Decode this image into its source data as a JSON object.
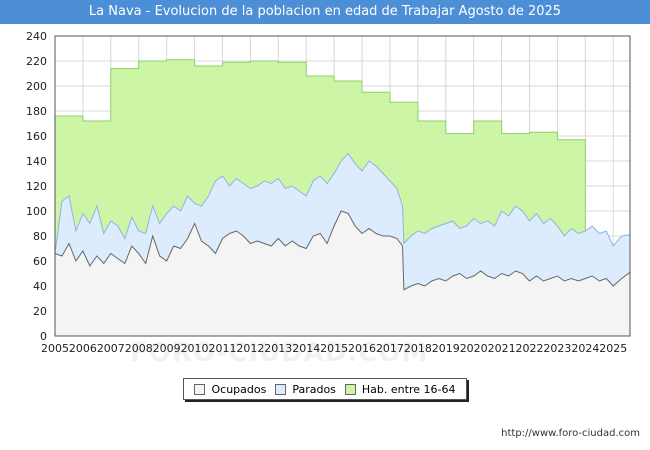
{
  "chart_data": {
    "type": "area",
    "title": "La Nava - Evolucion de la poblacion en edad de Trabajar Agosto de 2025",
    "xlabel": "",
    "ylabel": "",
    "ylim": [
      0,
      240
    ],
    "xlim": [
      2005,
      2025.6
    ],
    "yticks": [
      0,
      20,
      40,
      60,
      80,
      100,
      120,
      140,
      160,
      180,
      200,
      220,
      240
    ],
    "xticks": [
      "2005",
      "2006",
      "2007",
      "2008",
      "2009",
      "2010",
      "2011",
      "2012",
      "2013",
      "2014",
      "2015",
      "2016",
      "2017",
      "2018",
      "2019",
      "2020",
      "2021",
      "2022",
      "2023",
      "2024",
      "2025"
    ],
    "grid": true,
    "legend_position": "bottom-center",
    "series": [
      {
        "name": "Hab. entre 16-64",
        "color": "#ccf5a6",
        "line": "#8fd16a",
        "x": [
          2005,
          2006,
          2007,
          2008,
          2009,
          2010,
          2011,
          2012,
          2013,
          2014,
          2015,
          2016,
          2017,
          2018,
          2019,
          2020,
          2021,
          2022,
          2023,
          2024
        ],
        "values": [
          176,
          172,
          214,
          220,
          221,
          216,
          219,
          220,
          219,
          208,
          204,
          195,
          187,
          172,
          162,
          172,
          162,
          163,
          157,
          75
        ]
      },
      {
        "name": "Parados",
        "color": "#dcecfc",
        "line": "#8fb4e0",
        "x": [
          2005.0,
          2005.25,
          2005.5,
          2005.75,
          2006.0,
          2006.25,
          2006.5,
          2006.75,
          2007.0,
          2007.25,
          2007.5,
          2007.75,
          2008.0,
          2008.25,
          2008.5,
          2008.75,
          2009.0,
          2009.25,
          2009.5,
          2009.75,
          2010.0,
          2010.25,
          2010.5,
          2010.75,
          2011.0,
          2011.25,
          2011.5,
          2011.75,
          2012.0,
          2012.25,
          2012.5,
          2012.75,
          2013.0,
          2013.25,
          2013.5,
          2013.75,
          2014.0,
          2014.25,
          2014.5,
          2014.75,
          2015.0,
          2015.25,
          2015.5,
          2015.75,
          2016.0,
          2016.25,
          2016.5,
          2016.75,
          2017.0,
          2017.25,
          2017.45,
          2017.5,
          2017.75,
          2018.0,
          2018.25,
          2018.5,
          2018.75,
          2019.0,
          2019.25,
          2019.5,
          2019.75,
          2020.0,
          2020.25,
          2020.5,
          2020.75,
          2021.0,
          2021.25,
          2021.5,
          2021.75,
          2022.0,
          2022.25,
          2022.5,
          2022.75,
          2023.0,
          2023.25,
          2023.5,
          2023.75,
          2024.0,
          2024.25,
          2024.5,
          2024.75,
          2025.0,
          2025.3,
          2025.6
        ],
        "values": [
          66,
          108,
          112,
          84,
          98,
          90,
          104,
          82,
          92,
          88,
          78,
          95,
          84,
          82,
          104,
          90,
          98,
          104,
          100,
          112,
          106,
          104,
          112,
          124,
          128,
          120,
          126,
          122,
          118,
          120,
          124,
          122,
          126,
          118,
          120,
          116,
          112,
          124,
          128,
          122,
          130,
          140,
          146,
          138,
          132,
          140,
          136,
          130,
          124,
          118,
          104,
          74,
          80,
          84,
          82,
          86,
          88,
          90,
          92,
          86,
          88,
          94,
          90,
          92,
          88,
          100,
          96,
          104,
          100,
          92,
          98,
          90,
          94,
          88,
          80,
          86,
          82,
          84,
          88,
          82,
          84,
          72,
          80,
          81
        ]
      },
      {
        "name": "Ocupados",
        "color": "#f4f4f4",
        "line": "#666666",
        "x": [
          2005.0,
          2005.25,
          2005.5,
          2005.75,
          2006.0,
          2006.25,
          2006.5,
          2006.75,
          2007.0,
          2007.25,
          2007.5,
          2007.75,
          2008.0,
          2008.25,
          2008.5,
          2008.75,
          2009.0,
          2009.25,
          2009.5,
          2009.75,
          2010.0,
          2010.25,
          2010.5,
          2010.75,
          2011.0,
          2011.25,
          2011.5,
          2011.75,
          2012.0,
          2012.25,
          2012.5,
          2012.75,
          2013.0,
          2013.25,
          2013.5,
          2013.75,
          2014.0,
          2014.25,
          2014.5,
          2014.75,
          2015.0,
          2015.25,
          2015.5,
          2015.75,
          2016.0,
          2016.25,
          2016.5,
          2016.75,
          2017.0,
          2017.25,
          2017.45,
          2017.5,
          2017.75,
          2018.0,
          2018.25,
          2018.5,
          2018.75,
          2019.0,
          2019.25,
          2019.5,
          2019.75,
          2020.0,
          2020.25,
          2020.5,
          2020.75,
          2021.0,
          2021.25,
          2021.5,
          2021.75,
          2022.0,
          2022.25,
          2022.5,
          2022.75,
          2023.0,
          2023.25,
          2023.5,
          2023.75,
          2024.0,
          2024.25,
          2024.5,
          2024.75,
          2025.0,
          2025.3,
          2025.6
        ],
        "values": [
          66,
          64,
          74,
          60,
          68,
          56,
          64,
          58,
          66,
          62,
          58,
          72,
          66,
          58,
          80,
          64,
          60,
          72,
          70,
          78,
          90,
          76,
          72,
          66,
          78,
          82,
          84,
          80,
          74,
          76,
          74,
          72,
          78,
          72,
          76,
          72,
          70,
          80,
          82,
          74,
          88,
          100,
          98,
          88,
          82,
          86,
          82,
          80,
          80,
          78,
          72,
          37,
          40,
          42,
          40,
          44,
          46,
          44,
          48,
          50,
          46,
          48,
          52,
          48,
          46,
          50,
          48,
          52,
          50,
          44,
          48,
          44,
          46,
          48,
          44,
          46,
          44,
          46,
          48,
          44,
          46,
          40,
          46,
          51
        ]
      }
    ]
  },
  "page": {
    "legend": [
      "Ocupados",
      "Parados",
      "Hab. entre 16-64"
    ],
    "credit": "http://www.foro-ciudad.com",
    "watermark": "FORO-CIUDAD.COM"
  }
}
